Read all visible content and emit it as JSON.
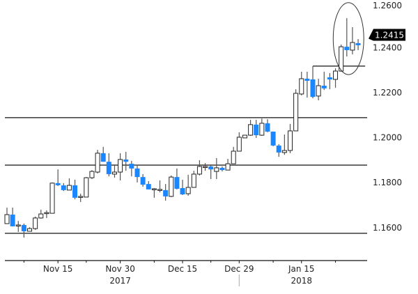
{
  "chart_data": {
    "type": "candlestick",
    "title": "",
    "xlabel": "",
    "ylabel": "",
    "ylim": [
      1.148,
      1.2615
    ],
    "y_ticks": [
      "1.2600",
      "1.2400",
      "1.2200",
      "1.2000",
      "1.1800",
      "1.1600"
    ],
    "y_tick_values": [
      1.26,
      1.24,
      1.22,
      1.2,
      1.18,
      1.16
    ],
    "x_major_ticks": [
      {
        "index": 10,
        "label": "Nov 15"
      },
      {
        "index": 21,
        "label": "Nov 30"
      },
      {
        "index": 32,
        "label": "Dec 15"
      },
      {
        "index": 42,
        "label": "Dec 29"
      },
      {
        "index": 53,
        "label": "Jan 15"
      }
    ],
    "x_minor_ticks": [
      4,
      15,
      27,
      37,
      48,
      59
    ],
    "years": [
      {
        "index": 21,
        "label": "2017"
      },
      {
        "index": 53,
        "label": "2018"
      }
    ],
    "year_separator_index": 42,
    "last_price": {
      "value": 1.2415,
      "label": "1.2415"
    },
    "horizontal_levels": [
      1.2089,
      1.1878,
      1.1575
    ],
    "resistance_segment": {
      "value": 1.2318,
      "from_index": 55,
      "to_index": 64
    },
    "highlight_ellipse": {
      "from_index": 58.6,
      "to_index": 64,
      "price_low": 1.228,
      "price_high": 1.26
    },
    "colors": {
      "down": "#1a86ff",
      "up": "#ffffff",
      "wick": "#555555",
      "line": "#000000"
    },
    "candles_ohlc": [
      [
        1.1618,
        1.1689,
        1.1618,
        1.1658
      ],
      [
        1.1658,
        1.1689,
        1.1606,
        1.1606
      ],
      [
        1.1612,
        1.163,
        1.1581,
        1.1612
      ],
      [
        1.1612,
        1.1618,
        1.1556,
        1.1584
      ],
      [
        1.1584,
        1.1602,
        1.1584,
        1.1596
      ],
      [
        1.1596,
        1.1649,
        1.159,
        1.1643
      ],
      [
        1.1643,
        1.168,
        1.164,
        1.1661
      ],
      [
        1.1667,
        1.1677,
        1.1643,
        1.1667
      ],
      [
        1.1664,
        1.1801,
        1.1664,
        1.1798
      ],
      [
        1.1798,
        1.1859,
        1.1785,
        1.1791
      ],
      [
        1.1788,
        1.1798,
        1.1763,
        1.1767
      ],
      [
        1.1767,
        1.1819,
        1.1767,
        1.1788
      ],
      [
        1.1788,
        1.1813,
        1.1726,
        1.1733
      ],
      [
        1.1739,
        1.1751,
        1.1714,
        1.1739
      ],
      [
        1.1736,
        1.1825,
        1.1736,
        1.1822
      ],
      [
        1.1822,
        1.1856,
        1.1816,
        1.185
      ],
      [
        1.1847,
        1.1946,
        1.1841,
        1.1931
      ],
      [
        1.1931,
        1.1959,
        1.1893,
        1.1893
      ],
      [
        1.1893,
        1.1931,
        1.1828,
        1.1838
      ],
      [
        1.1838,
        1.1881,
        1.1822,
        1.1847
      ],
      [
        1.1847,
        1.1931,
        1.181,
        1.1903
      ],
      [
        1.1903,
        1.1937,
        1.1853,
        1.1893
      ],
      [
        1.1884,
        1.1897,
        1.1828,
        1.1863
      ],
      [
        1.1863,
        1.1875,
        1.1801,
        1.1825
      ],
      [
        1.1825,
        1.1838,
        1.1782,
        1.1791
      ],
      [
        1.1794,
        1.1807,
        1.177,
        1.177
      ],
      [
        1.1773,
        1.1776,
        1.1733,
        1.1773
      ],
      [
        1.177,
        1.181,
        1.1757,
        1.177
      ],
      [
        1.1767,
        1.1794,
        1.172,
        1.1739
      ],
      [
        1.1739,
        1.1832,
        1.1736,
        1.1825
      ],
      [
        1.1825,
        1.1863,
        1.177,
        1.1773
      ],
      [
        1.1776,
        1.1813,
        1.1745,
        1.1748
      ],
      [
        1.1751,
        1.1835,
        1.1742,
        1.1779
      ],
      [
        1.1779,
        1.1853,
        1.1779,
        1.1838
      ],
      [
        1.1838,
        1.19,
        1.1832,
        1.1872
      ],
      [
        1.1872,
        1.1887,
        1.1853,
        1.1872
      ],
      [
        1.1872,
        1.1881,
        1.1816,
        1.1859
      ],
      [
        1.185,
        1.1909,
        1.1816,
        1.1866
      ],
      [
        1.1866,
        1.1872,
        1.185,
        1.1856
      ],
      [
        1.1856,
        1.1906,
        1.1856,
        1.1884
      ],
      [
        1.1884,
        1.1959,
        1.1884,
        1.194
      ],
      [
        1.194,
        1.2024,
        1.194,
        1.2002
      ],
      [
        1.1999,
        1.2011,
        1.1999,
        1.2011
      ],
      [
        1.2011,
        1.2079,
        1.2008,
        1.2058
      ],
      [
        1.2058,
        1.2079,
        1.1999,
        1.2011
      ],
      [
        1.2011,
        1.2085,
        1.2008,
        1.2064
      ],
      [
        1.2064,
        1.2082,
        1.2024,
        1.2027
      ],
      [
        1.2027,
        1.2027,
        1.1962,
        1.1965
      ],
      [
        1.1965,
        1.1971,
        1.1915,
        1.1934
      ],
      [
        1.1934,
        1.2014,
        1.1924,
        1.1943
      ],
      [
        1.1943,
        1.2061,
        1.1931,
        1.203
      ],
      [
        1.203,
        1.2215,
        1.203,
        1.2197
      ],
      [
        1.2194,
        1.2293,
        1.2188,
        1.2262
      ],
      [
        1.2262,
        1.2293,
        1.2178,
        1.2256
      ],
      [
        1.2259,
        1.2318,
        1.2175,
        1.2181
      ],
      [
        1.2185,
        1.2262,
        1.2166,
        1.2231
      ],
      [
        1.2231,
        1.2293,
        1.2212,
        1.2219
      ],
      [
        1.2268,
        1.2287,
        1.2215,
        1.2259
      ],
      [
        1.2259,
        1.2308,
        1.2222,
        1.2296
      ],
      [
        1.2296,
        1.2414,
        1.2293,
        1.2404
      ],
      [
        1.2404,
        1.2531,
        1.2361,
        1.2389
      ],
      [
        1.2389,
        1.2491,
        1.237,
        1.2423
      ],
      [
        1.242,
        1.2438,
        1.2389,
        1.2415
      ]
    ]
  }
}
